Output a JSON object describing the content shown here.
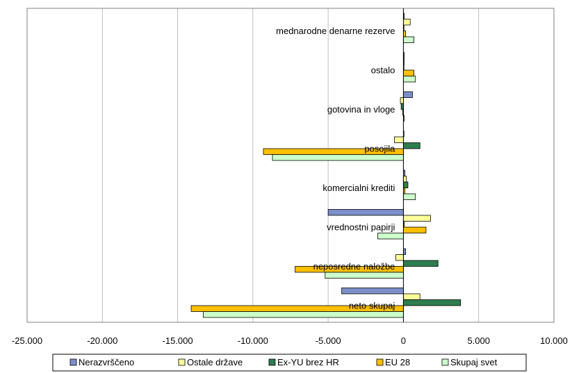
{
  "chart_data": {
    "type": "bar",
    "orientation": "horizontal",
    "title": "",
    "xlabel": "",
    "ylabel": "",
    "xlim": [
      -25000,
      10000
    ],
    "x_ticks": [
      "-25.000",
      "-20.000",
      "-15.000",
      "-10.000",
      "-5.000",
      "0",
      "5.000",
      "10.000"
    ],
    "x_tick_values": [
      -25000,
      -20000,
      -15000,
      -10000,
      -5000,
      0,
      5000,
      10000
    ],
    "grid": true,
    "legend_position": "bottom",
    "categories": [
      "mednarodne denarne rezerve",
      "ostalo",
      "gotovina in vloge",
      "posojila",
      "komercialni krediti",
      "vrednostni papirji",
      "neposredne naložbe",
      "neto skupaj"
    ],
    "series": [
      {
        "name": "Nerazvrščeno",
        "color": "#7b8fc9",
        "values": [
          50,
          50,
          600,
          20,
          100,
          -5000,
          150,
          -4100
        ]
      },
      {
        "name": "Ostale države",
        "color": "#ffff99",
        "values": [
          450,
          50,
          -200,
          -600,
          200,
          1800,
          -500,
          1100
        ]
      },
      {
        "name": "Ex-YU brez HR",
        "color": "#2e7d4f",
        "values": [
          20,
          20,
          -150,
          1100,
          300,
          50,
          2300,
          3800
        ]
      },
      {
        "name": "EU 28",
        "color": "#ffc000",
        "values": [
          150,
          700,
          -50,
          -9300,
          100,
          1500,
          -7200,
          -14100
        ]
      },
      {
        "name": "Skupaj svet",
        "color": "#ccffcc",
        "values": [
          700,
          800,
          50,
          -8700,
          800,
          -1700,
          -5200,
          -13300
        ]
      }
    ]
  }
}
